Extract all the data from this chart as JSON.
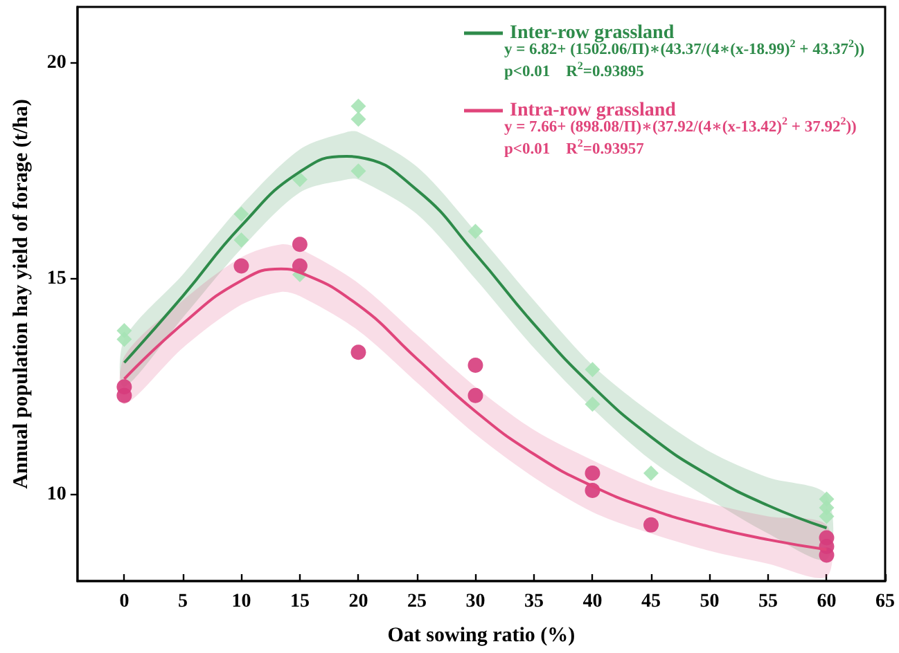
{
  "chart_data": {
    "type": "scatter",
    "xlabel": "Oat sowing ratio (%)",
    "ylabel": "Annual population hay yield of forage (t/ha)",
    "xlim": [
      -4,
      65
    ],
    "xticks": [
      0,
      5,
      10,
      15,
      20,
      25,
      30,
      35,
      40,
      45,
      50,
      55,
      60,
      65
    ],
    "ylim": [
      8,
      21.3
    ],
    "yticks": [
      10,
      15,
      20
    ],
    "grid": false,
    "legend": "top right",
    "annotations": [
      "y = 6.82+ (1502.06/Π)∗(43.37/(4∗(x-18.99)$^{2}$ + 43.37$^{2}$))",
      "p<0.01    R$^{2}$=0.93895",
      "y = 7.66+ (898.08/Π)∗(37.92/(4∗(x-13.42)$^{2}$ + 37.92$^{2}$))",
      "p<0.01    R$^{2}$=0.93957"
    ],
    "series": [
      {
        "color": "#a6e3b5",
        "marker": "diamond",
        "x": [
          0,
          0,
          10,
          10,
          15,
          15,
          20,
          20,
          20,
          30,
          40,
          40,
          45,
          60,
          60,
          60
        ],
        "values": [
          13.8,
          13.6,
          16.5,
          15.9,
          17.3,
          15.1,
          19.0,
          18.7,
          17.5,
          16.1,
          12.9,
          12.1,
          10.5,
          9.9,
          9.7,
          9.5
        ]
      },
      {
        "type": "line",
        "name": "Inter-row grassland",
        "color": "#2e8b4a",
        "marker": "none",
        "x": [
          0,
          5,
          10,
          15,
          19,
          20,
          25,
          30,
          35,
          40,
          45,
          50,
          55,
          60
        ],
        "values": [
          13.06,
          14.6,
          16.23,
          17.48,
          17.84,
          17.82,
          17.06,
          15.58,
          13.95,
          12.51,
          11.34,
          10.44,
          9.75,
          9.23
        ],
        "lower": [
          12.5,
          14.1,
          15.7,
          17.0,
          17.3,
          17.3,
          16.5,
          15.0,
          13.4,
          12.0,
          10.8,
          9.9,
          9.1,
          8.5
        ],
        "upper": [
          13.6,
          15.1,
          16.7,
          18.0,
          18.4,
          18.4,
          17.6,
          16.1,
          14.5,
          13.0,
          11.9,
          11.0,
          10.4,
          10.0
        ]
      },
      {
        "color": "#d63c7c",
        "marker": "circle",
        "x": [
          0,
          0,
          10,
          15,
          15,
          20,
          30,
          30,
          40,
          40,
          45,
          60,
          60,
          60
        ],
        "values": [
          12.5,
          12.3,
          15.3,
          15.8,
          15.3,
          13.3,
          13.0,
          12.3,
          10.5,
          10.1,
          9.3,
          9.0,
          8.8,
          8.6
        ]
      },
      {
        "type": "line",
        "name": "Intra-row grassland",
        "color": "#e0457b",
        "marker": "none",
        "x": [
          0,
          5,
          10,
          13.4,
          15,
          20,
          25,
          30,
          35,
          40,
          45,
          50,
          55,
          60
        ],
        "values": [
          12.68,
          13.96,
          14.96,
          15.23,
          15.15,
          14.39,
          13.15,
          11.93,
          10.94,
          10.2,
          9.66,
          9.26,
          8.96,
          8.73
        ],
        "lower": [
          12.1,
          13.4,
          14.4,
          14.7,
          14.6,
          13.8,
          12.6,
          11.4,
          10.4,
          9.6,
          9.1,
          8.7,
          8.4,
          8.1
        ],
        "upper": [
          13.2,
          14.5,
          15.5,
          15.8,
          15.7,
          14.9,
          13.7,
          12.5,
          11.5,
          10.8,
          10.2,
          9.8,
          9.5,
          9.3
        ]
      }
    ]
  }
}
